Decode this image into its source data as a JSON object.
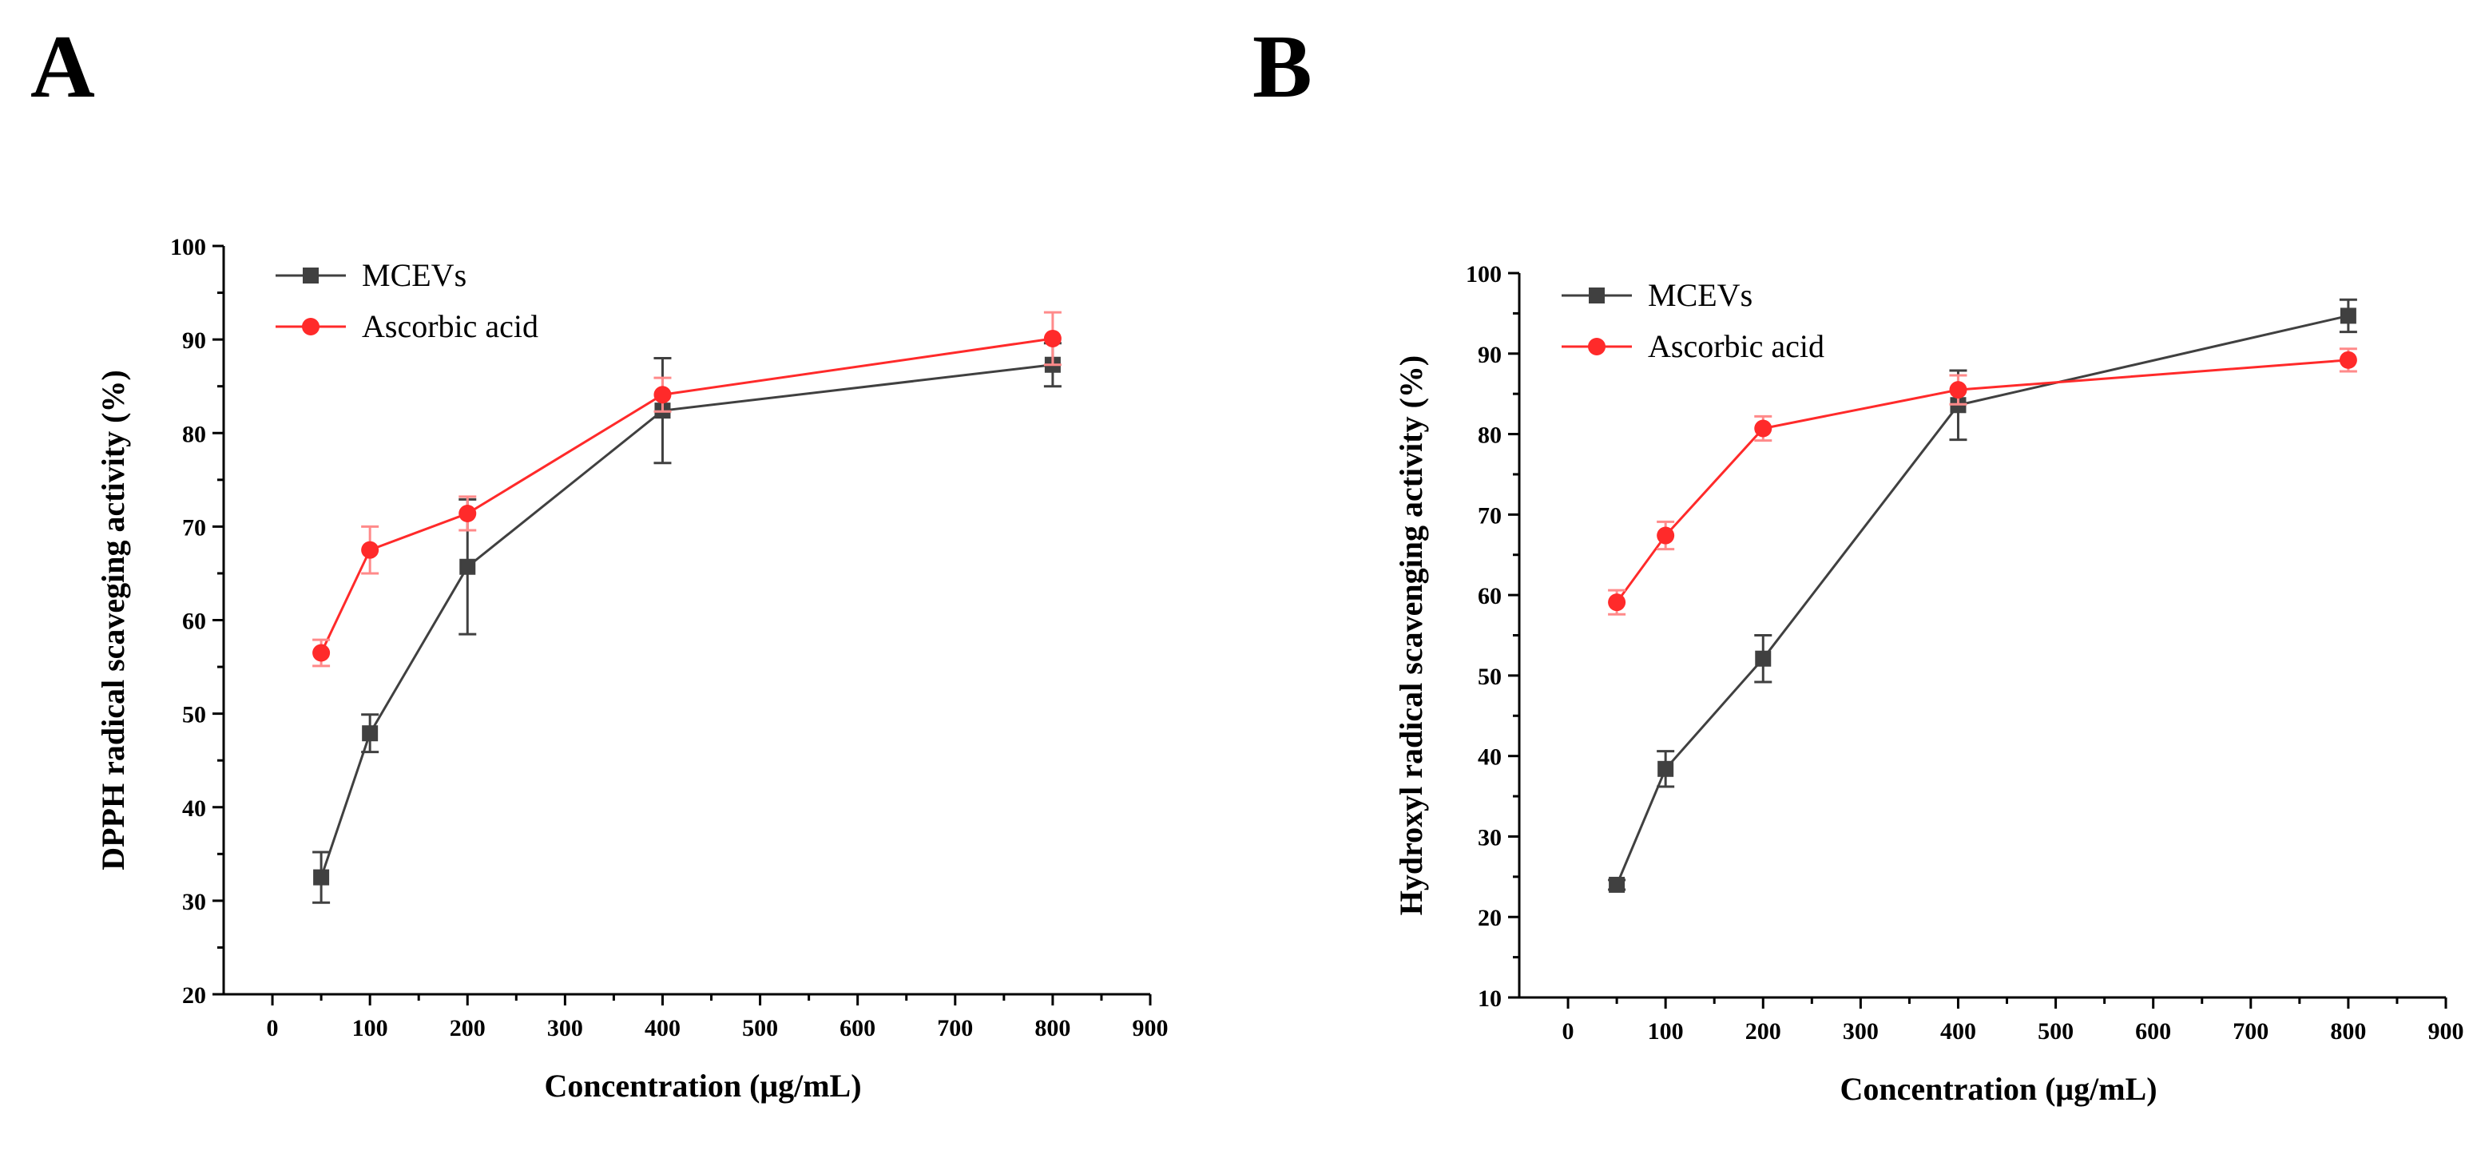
{
  "panels": {
    "a_label": "A",
    "b_label": "B"
  },
  "colors": {
    "series_mcevs": "#404040",
    "series_ascorbic": "#ff2a2a",
    "error_ascorbic": "#ff8a8a"
  },
  "chart_data": [
    {
      "type": "line",
      "title": "",
      "xlabel": "Concentration (μg/mL)",
      "ylabel": "DPPH radical scaveging activity (%)",
      "xlim": [
        -50,
        900
      ],
      "ylim": [
        20,
        100
      ],
      "xticks": [
        0,
        100,
        200,
        300,
        400,
        500,
        600,
        700,
        800,
        900
      ],
      "yticks": [
        20,
        30,
        40,
        50,
        60,
        70,
        80,
        90,
        100
      ],
      "legend_position": "top-left",
      "series": [
        {
          "name": "MCEVs",
          "marker": "square",
          "color": "#404040",
          "x": [
            50,
            100,
            200,
            400,
            800
          ],
          "y": [
            32.5,
            47.9,
            65.7,
            82.4,
            87.3
          ],
          "error": [
            2.7,
            2.0,
            7.2,
            5.6,
            2.3
          ]
        },
        {
          "name": "Ascorbic acid",
          "marker": "circle",
          "color": "#ff2a2a",
          "x": [
            50,
            100,
            200,
            400,
            800
          ],
          "y": [
            56.5,
            67.5,
            71.4,
            84.1,
            90.1
          ],
          "error": [
            1.4,
            2.5,
            1.8,
            1.8,
            2.8
          ]
        }
      ]
    },
    {
      "type": "line",
      "title": "",
      "xlabel": "Concentration (μg/mL)",
      "ylabel": "Hydroxyl radical scavenging activity (%)",
      "xlim": [
        -50,
        900
      ],
      "ylim": [
        10,
        100
      ],
      "xticks": [
        0,
        100,
        200,
        300,
        400,
        500,
        600,
        700,
        800,
        900
      ],
      "yticks": [
        10,
        20,
        30,
        40,
        50,
        60,
        70,
        80,
        90,
        100
      ],
      "legend_position": "top-left",
      "series": [
        {
          "name": "MCEVs",
          "marker": "square",
          "color": "#404040",
          "x": [
            50,
            100,
            200,
            400,
            800
          ],
          "y": [
            24.0,
            38.4,
            52.1,
            83.6,
            94.7
          ],
          "error": [
            0.6,
            2.2,
            2.9,
            4.3,
            2.0
          ]
        },
        {
          "name": "Ascorbic acid",
          "marker": "circle",
          "color": "#ff2a2a",
          "x": [
            50,
            100,
            200,
            400,
            800
          ],
          "y": [
            59.1,
            67.4,
            80.7,
            85.5,
            89.2
          ],
          "error": [
            1.5,
            1.7,
            1.5,
            1.8,
            1.4
          ]
        }
      ]
    }
  ]
}
